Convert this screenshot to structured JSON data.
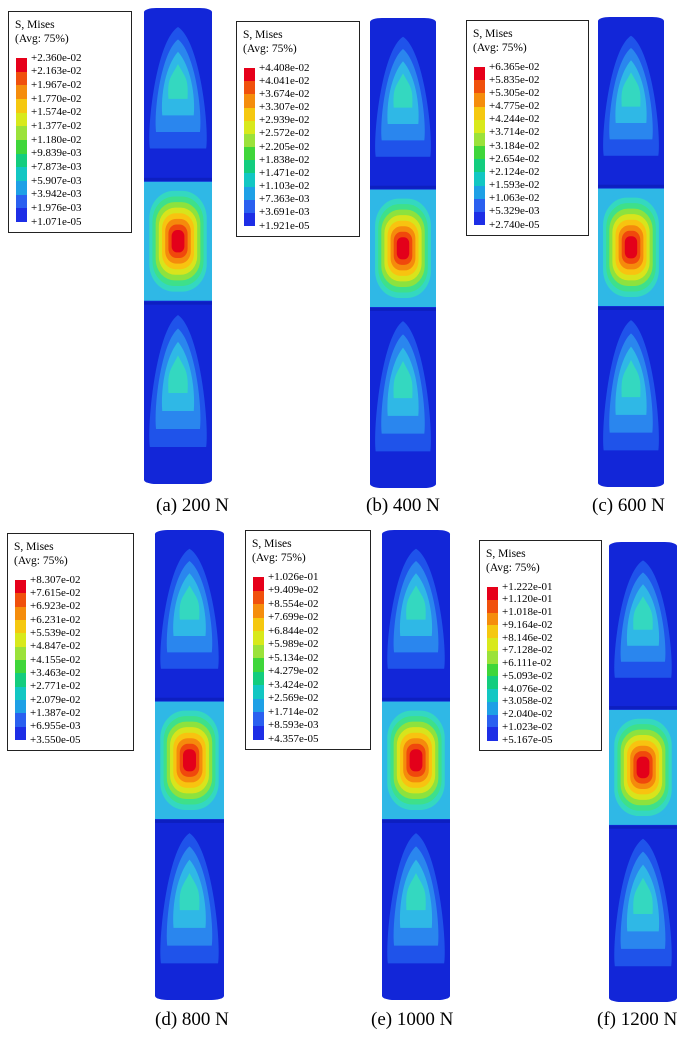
{
  "palette": [
    "#e6001a",
    "#f0500c",
    "#f58d0c",
    "#f5c810",
    "#d8e91c",
    "#9be23a",
    "#3fd63a",
    "#13cd7e",
    "#12c7c3",
    "#1ea0e6",
    "#2a60f0",
    "#1d2ee6"
  ],
  "rod_colors": {
    "base": "#1226d8",
    "levels": [
      "#1f53ea",
      "#2a86ee",
      "#2fb8e6",
      "#34d8c0",
      "#3ee08a",
      "#8de23e",
      "#d8e41c",
      "#f8c310",
      "#f58a0c",
      "#f0480c",
      "#e3001a"
    ]
  },
  "panels": [
    {
      "caption": "(a) 200 N",
      "legend": {
        "title1": "S, Mises",
        "title2": "(Avg: 75%)",
        "values": [
          "+2.360e-02",
          "+2.163e-02",
          "+1.967e-02",
          "+1.770e-02",
          "+1.574e-02",
          "+1.377e-02",
          "+1.180e-02",
          "+9.839e-03",
          "+7.873e-03",
          "+5.907e-03",
          "+3.942e-03",
          "+1.976e-03",
          "+1.071e-05"
        ]
      }
    },
    {
      "caption": "(b) 400 N",
      "legend": {
        "title1": "S, Mises",
        "title2": "(Avg: 75%)",
        "values": [
          "+4.408e-02",
          "+4.041e-02",
          "+3.674e-02",
          "+3.307e-02",
          "+2.939e-02",
          "+2.572e-02",
          "+2.205e-02",
          "+1.838e-02",
          "+1.471e-02",
          "+1.103e-02",
          "+7.363e-03",
          "+3.691e-03",
          "+1.921e-05"
        ]
      }
    },
    {
      "caption": "(c) 600 N",
      "legend": {
        "title1": "S, Mises",
        "title2": "(Avg: 75%)",
        "values": [
          "+6.365e-02",
          "+5.835e-02",
          "+5.305e-02",
          "+4.775e-02",
          "+4.244e-02",
          "+3.714e-02",
          "+3.184e-02",
          "+2.654e-02",
          "+2.124e-02",
          "+1.593e-02",
          "+1.063e-02",
          "+5.329e-03",
          "+2.740e-05"
        ]
      }
    },
    {
      "caption": "(d) 800 N",
      "legend": {
        "title1": "S, Mises",
        "title2": "(Avg: 75%)",
        "values": [
          "+8.307e-02",
          "+7.615e-02",
          "+6.923e-02",
          "+6.231e-02",
          "+5.539e-02",
          "+4.847e-02",
          "+4.155e-02",
          "+3.463e-02",
          "+2.771e-02",
          "+2.079e-02",
          "+1.387e-02",
          "+6.955e-03",
          "+3.550e-05"
        ]
      }
    },
    {
      "caption": "(e) 1000 N",
      "legend": {
        "title1": "S, Mises",
        "title2": "(Avg: 75%)",
        "values": [
          "+1.026e-01",
          "+9.409e-02",
          "+8.554e-02",
          "+7.699e-02",
          "+6.844e-02",
          "+5.989e-02",
          "+5.134e-02",
          "+4.279e-02",
          "+3.424e-02",
          "+2.569e-02",
          "+1.714e-02",
          "+8.593e-03",
          "+4.357e-05"
        ]
      }
    },
    {
      "caption": "(f) 1200 N",
      "legend": {
        "title1": "S, Mises",
        "title2": "(Avg: 75%)",
        "values": [
          "+1.222e-01",
          "+1.120e-01",
          "+1.018e-01",
          "+9.164e-02",
          "+8.146e-02",
          "+7.128e-02",
          "+6.111e-02",
          "+5.093e-02",
          "+4.076e-02",
          "+3.058e-02",
          "+2.040e-02",
          "+1.023e-02",
          "+5.167e-05"
        ]
      }
    }
  ]
}
